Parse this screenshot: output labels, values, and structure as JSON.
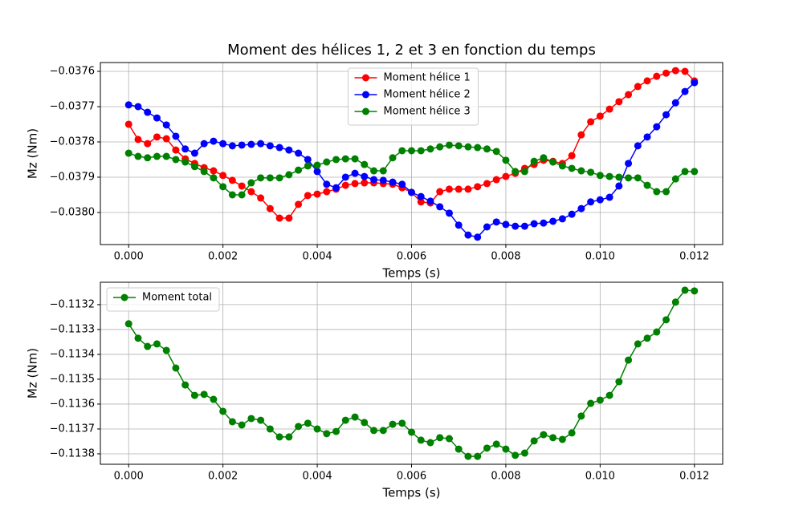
{
  "chart_data": [
    {
      "type": "line",
      "title": "Moment des hélices 1, 2 et 3 en fonction du temps",
      "xlabel": "Temps (s)",
      "ylabel": "Mz (Nm)",
      "x": [
        0,
        0.0002,
        0.0004,
        0.0006,
        0.0008,
        0.001,
        0.0012,
        0.0014,
        0.0016,
        0.0018,
        0.002,
        0.0022,
        0.0024,
        0.0026,
        0.0028,
        0.003,
        0.0032,
        0.0034,
        0.0036,
        0.0038,
        0.004,
        0.0042,
        0.0044,
        0.0046,
        0.0048,
        0.005,
        0.0052,
        0.0054,
        0.0056,
        0.0058,
        0.006,
        0.0062,
        0.0064,
        0.0066,
        0.0068,
        0.007,
        0.0072,
        0.0074,
        0.0076,
        0.0078,
        0.008,
        0.0082,
        0.0084,
        0.0086,
        0.0088,
        0.009,
        0.0092,
        0.0094,
        0.0096,
        0.0098,
        0.01,
        0.0102,
        0.0104,
        0.0106,
        0.0108,
        0.011,
        0.0112,
        0.0114,
        0.0116,
        0.0118,
        0.012
      ],
      "series": [
        {
          "name": "Moment hélice 1",
          "color": "#ff0000",
          "values": [
            -0.03775,
            -0.037793,
            -0.037805,
            -0.037786,
            -0.037791,
            -0.037823,
            -0.037848,
            -0.037861,
            -0.037873,
            -0.037882,
            -0.037895,
            -0.037909,
            -0.037925,
            -0.037941,
            -0.037959,
            -0.037989,
            -0.038016,
            -0.038016,
            -0.037977,
            -0.037952,
            -0.037948,
            -0.037941,
            -0.037934,
            -0.037923,
            -0.037918,
            -0.037916,
            -0.037916,
            -0.037918,
            -0.03792,
            -0.03793,
            -0.037943,
            -0.03797,
            -0.037973,
            -0.037941,
            -0.037934,
            -0.037934,
            -0.037934,
            -0.037927,
            -0.037918,
            -0.037907,
            -0.037898,
            -0.037889,
            -0.037875,
            -0.037864,
            -0.037852,
            -0.037855,
            -0.037861,
            -0.037839,
            -0.03778,
            -0.037743,
            -0.037727,
            -0.037707,
            -0.037686,
            -0.037666,
            -0.037643,
            -0.037627,
            -0.037614,
            -0.037605,
            -0.037598,
            -0.0376,
            -0.037627
          ]
        },
        {
          "name": "Moment hélice 2",
          "color": "#0000ff",
          "values": [
            -0.037695,
            -0.0377,
            -0.037716,
            -0.037732,
            -0.037752,
            -0.037784,
            -0.03782,
            -0.037832,
            -0.037805,
            -0.037798,
            -0.037805,
            -0.037811,
            -0.037809,
            -0.037807,
            -0.037805,
            -0.037811,
            -0.037816,
            -0.037823,
            -0.037832,
            -0.03785,
            -0.037884,
            -0.03792,
            -0.03793,
            -0.0379,
            -0.037889,
            -0.037898,
            -0.037907,
            -0.037909,
            -0.037914,
            -0.03792,
            -0.037943,
            -0.037955,
            -0.037968,
            -0.037984,
            -0.038002,
            -0.038036,
            -0.038064,
            -0.03807,
            -0.038041,
            -0.038027,
            -0.038034,
            -0.038039,
            -0.038039,
            -0.038032,
            -0.03803,
            -0.038025,
            -0.038018,
            -0.038005,
            -0.037989,
            -0.03797,
            -0.037964,
            -0.037957,
            -0.037925,
            -0.037861,
            -0.037811,
            -0.037786,
            -0.037757,
            -0.037723,
            -0.037689,
            -0.037657,
            -0.037632
          ]
        },
        {
          "name": "Moment hélice 3",
          "color": "#008000",
          "values": [
            -0.037832,
            -0.037841,
            -0.037845,
            -0.037841,
            -0.037841,
            -0.03785,
            -0.037857,
            -0.03787,
            -0.037884,
            -0.037902,
            -0.037927,
            -0.03795,
            -0.03795,
            -0.037916,
            -0.037902,
            -0.037902,
            -0.037902,
            -0.037893,
            -0.03788,
            -0.037868,
            -0.037866,
            -0.037857,
            -0.03785,
            -0.037848,
            -0.037848,
            -0.037864,
            -0.037882,
            -0.037882,
            -0.037845,
            -0.037825,
            -0.037825,
            -0.037825,
            -0.03782,
            -0.037814,
            -0.037809,
            -0.037811,
            -0.037814,
            -0.037816,
            -0.03782,
            -0.037827,
            -0.037852,
            -0.037884,
            -0.037884,
            -0.037855,
            -0.037845,
            -0.037857,
            -0.037868,
            -0.037875,
            -0.037882,
            -0.037886,
            -0.037895,
            -0.037898,
            -0.0379,
            -0.037902,
            -0.037902,
            -0.037923,
            -0.037941,
            -0.037941,
            -0.037905,
            -0.037884,
            -0.037884
          ]
        }
      ],
      "xlim": [
        -0.0006,
        0.0126
      ],
      "ylim": [
        -0.038091,
        -0.037575
      ],
      "xticks": [
        {
          "value": 0,
          "label": "0.000"
        },
        {
          "value": 0.002,
          "label": "0.002"
        },
        {
          "value": 0.004,
          "label": "0.004"
        },
        {
          "value": 0.006,
          "label": "0.006"
        },
        {
          "value": 0.008,
          "label": "0.008"
        },
        {
          "value": 0.01,
          "label": "0.010"
        },
        {
          "value": 0.012,
          "label": "0.012"
        }
      ],
      "yticks": [
        {
          "value": -0.0376,
          "label": "−0.0376"
        },
        {
          "value": -0.0377,
          "label": "−0.0377"
        },
        {
          "value": -0.0378,
          "label": "−0.0378"
        },
        {
          "value": -0.0379,
          "label": "−0.0379"
        },
        {
          "value": -0.038,
          "label": "−0.0380"
        }
      ],
      "grid": true,
      "legend": "upper-center"
    },
    {
      "type": "line",
      "xlabel": "Temps (s)",
      "ylabel": "Mz (Nm)",
      "x": [
        0,
        0.0002,
        0.0004,
        0.0006,
        0.0008,
        0.001,
        0.0012,
        0.0014,
        0.0016,
        0.0018,
        0.002,
        0.0022,
        0.0024,
        0.0026,
        0.0028,
        0.003,
        0.0032,
        0.0034,
        0.0036,
        0.0038,
        0.004,
        0.0042,
        0.0044,
        0.0046,
        0.0048,
        0.005,
        0.0052,
        0.0054,
        0.0056,
        0.0058,
        0.006,
        0.0062,
        0.0064,
        0.0066,
        0.0068,
        0.007,
        0.0072,
        0.0074,
        0.0076,
        0.0078,
        0.008,
        0.0082,
        0.0084,
        0.0086,
        0.0088,
        0.009,
        0.0092,
        0.0094,
        0.0096,
        0.0098,
        0.01,
        0.0102,
        0.0104,
        0.0106,
        0.0108,
        0.011,
        0.0112,
        0.0114,
        0.0116,
        0.0118,
        0.012
      ],
      "series": [
        {
          "name": "Moment total",
          "color": "#008000",
          "values": [
            -0.113277,
            -0.113335,
            -0.113368,
            -0.113358,
            -0.113384,
            -0.113455,
            -0.113523,
            -0.113565,
            -0.113561,
            -0.113581,
            -0.113629,
            -0.113671,
            -0.113684,
            -0.113658,
            -0.113665,
            -0.1137,
            -0.113732,
            -0.113732,
            -0.11369,
            -0.113677,
            -0.1137,
            -0.113719,
            -0.11371,
            -0.113665,
            -0.113652,
            -0.113674,
            -0.113706,
            -0.113706,
            -0.113681,
            -0.113677,
            -0.113713,
            -0.113745,
            -0.113755,
            -0.113735,
            -0.113739,
            -0.113781,
            -0.11381,
            -0.11381,
            -0.113777,
            -0.113761,
            -0.113781,
            -0.113806,
            -0.113797,
            -0.113748,
            -0.113723,
            -0.113735,
            -0.113742,
            -0.113716,
            -0.113648,
            -0.113597,
            -0.113584,
            -0.113565,
            -0.11351,
            -0.113423,
            -0.113358,
            -0.113335,
            -0.11331,
            -0.113261,
            -0.11319,
            -0.113142,
            -0.113145
          ]
        }
      ],
      "xlim": [
        -0.0006,
        0.0126
      ],
      "ylim": [
        -0.113842,
        -0.11311
      ],
      "xticks": [
        {
          "value": 0,
          "label": "0.000"
        },
        {
          "value": 0.002,
          "label": "0.002"
        },
        {
          "value": 0.004,
          "label": "0.004"
        },
        {
          "value": 0.006,
          "label": "0.006"
        },
        {
          "value": 0.008,
          "label": "0.008"
        },
        {
          "value": 0.01,
          "label": "0.010"
        },
        {
          "value": 0.012,
          "label": "0.012"
        }
      ],
      "yticks": [
        {
          "value": -0.1132,
          "label": "−0.1132"
        },
        {
          "value": -0.1133,
          "label": "−0.1133"
        },
        {
          "value": -0.1134,
          "label": "−0.1134"
        },
        {
          "value": -0.1135,
          "label": "−0.1135"
        },
        {
          "value": -0.1136,
          "label": "−0.1136"
        },
        {
          "value": -0.1137,
          "label": "−0.1137"
        },
        {
          "value": -0.1138,
          "label": "−0.1138"
        }
      ],
      "grid": true,
      "legend": "upper-left"
    }
  ]
}
